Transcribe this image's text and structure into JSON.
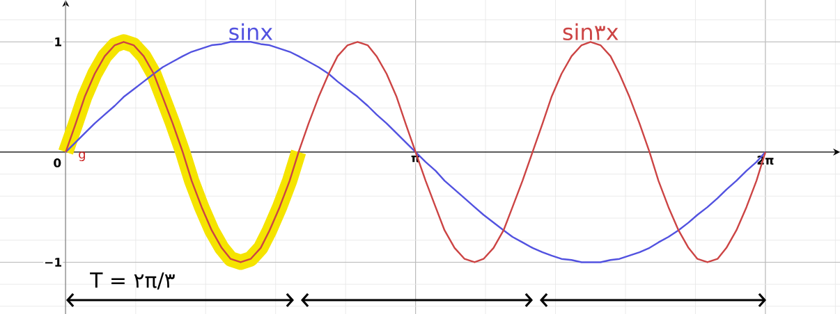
{
  "chart_data": {
    "type": "line",
    "x": [
      0,
      0.09,
      0.17,
      0.26,
      0.35,
      0.44,
      0.52,
      0.61,
      0.7,
      0.79,
      0.87,
      0.96,
      1.05,
      1.13,
      1.22,
      1.31,
      1.4,
      1.48,
      1.57,
      1.66,
      1.75,
      1.83,
      1.92,
      2.01,
      2.09,
      2.18,
      2.27,
      2.36,
      2.44,
      2.53,
      2.62,
      2.71,
      2.79,
      2.88,
      2.97,
      3.05,
      3.14,
      3.23,
      3.32,
      3.4,
      3.49,
      3.58,
      3.67,
      3.75,
      3.84,
      3.93,
      4.01,
      4.1,
      4.19,
      4.28,
      4.36,
      4.45,
      4.54,
      4.63,
      4.71,
      4.8,
      4.89,
      4.97,
      5.06,
      5.15,
      5.24,
      5.32,
      5.41,
      5.5,
      5.59,
      5.67,
      5.76,
      5.85,
      5.93,
      6.02,
      6.11,
      6.2,
      6.28
    ],
    "series": [
      {
        "color": "#f5e400",
        "x": [
          0,
          0.09,
          0.17,
          0.26,
          0.35,
          0.44,
          0.52,
          0.61,
          0.7,
          0.79,
          0.87,
          0.96,
          1.05,
          1.13,
          1.22,
          1.31,
          1.4,
          1.48,
          1.57,
          1.66,
          1.75,
          1.83,
          1.92,
          2.01,
          2.09
        ],
        "values": [
          0,
          0.26,
          0.5,
          0.71,
          0.87,
          0.97,
          1,
          0.97,
          0.87,
          0.71,
          0.5,
          0.26,
          0,
          -0.26,
          -0.5,
          -0.71,
          -0.87,
          -0.97,
          -1,
          -0.97,
          -0.87,
          -0.71,
          -0.5,
          -0.26,
          0
        ]
      },
      {
        "name": "sinx",
        "color": "#5252e0",
        "values": [
          0,
          0.09,
          0.17,
          0.26,
          0.34,
          0.42,
          0.5,
          0.57,
          0.64,
          0.71,
          0.77,
          0.82,
          0.87,
          0.91,
          0.94,
          0.97,
          0.98,
          1,
          1,
          1,
          0.98,
          0.97,
          0.94,
          0.91,
          0.87,
          0.82,
          0.77,
          0.71,
          0.64,
          0.57,
          0.5,
          0.42,
          0.34,
          0.26,
          0.17,
          0.09,
          0,
          -0.09,
          -0.17,
          -0.26,
          -0.34,
          -0.42,
          -0.5,
          -0.57,
          -0.64,
          -0.71,
          -0.77,
          -0.82,
          -0.87,
          -0.91,
          -0.94,
          -0.97,
          -0.98,
          -1,
          -1,
          -1,
          -0.98,
          -0.97,
          -0.94,
          -0.91,
          -0.87,
          -0.82,
          -0.77,
          -0.71,
          -0.64,
          -0.57,
          -0.5,
          -0.42,
          -0.34,
          -0.26,
          -0.17,
          -0.09,
          0
        ]
      },
      {
        "name": "sin٣x",
        "color": "#cc4444",
        "values": [
          0,
          0.26,
          0.5,
          0.71,
          0.87,
          0.97,
          1,
          0.97,
          0.87,
          0.71,
          0.5,
          0.26,
          0,
          -0.26,
          -0.5,
          -0.71,
          -0.87,
          -0.97,
          -1,
          -0.97,
          -0.87,
          -0.71,
          -0.5,
          -0.26,
          0,
          0.26,
          0.5,
          0.71,
          0.87,
          0.97,
          1,
          0.97,
          0.87,
          0.71,
          0.5,
          0.26,
          0,
          -0.26,
          -0.5,
          -0.71,
          -0.87,
          -0.97,
          -1,
          -0.97,
          -0.87,
          -0.71,
          -0.5,
          -0.26,
          0,
          0.26,
          0.5,
          0.71,
          0.87,
          0.97,
          1,
          0.97,
          0.87,
          0.71,
          0.5,
          0.26,
          0,
          -0.26,
          -0.5,
          -0.71,
          -0.87,
          -0.97,
          -1,
          -0.97,
          -0.87,
          -0.71,
          -0.5,
          -0.26,
          0
        ]
      }
    ],
    "xlim": [
      -0.59,
      6.95
    ],
    "ylim": [
      -1.47,
      1.38
    ],
    "xticks": [
      {
        "value": 0,
        "label": "0"
      },
      {
        "value": 3.14,
        "label": "π"
      },
      {
        "value": 6.28,
        "label": "2π"
      }
    ],
    "yticks": [
      1,
      {
        "value": -1,
        "label": "−1"
      }
    ],
    "grid": true,
    "annotations": [
      "T = ٢π/٣",
      "g"
    ]
  }
}
